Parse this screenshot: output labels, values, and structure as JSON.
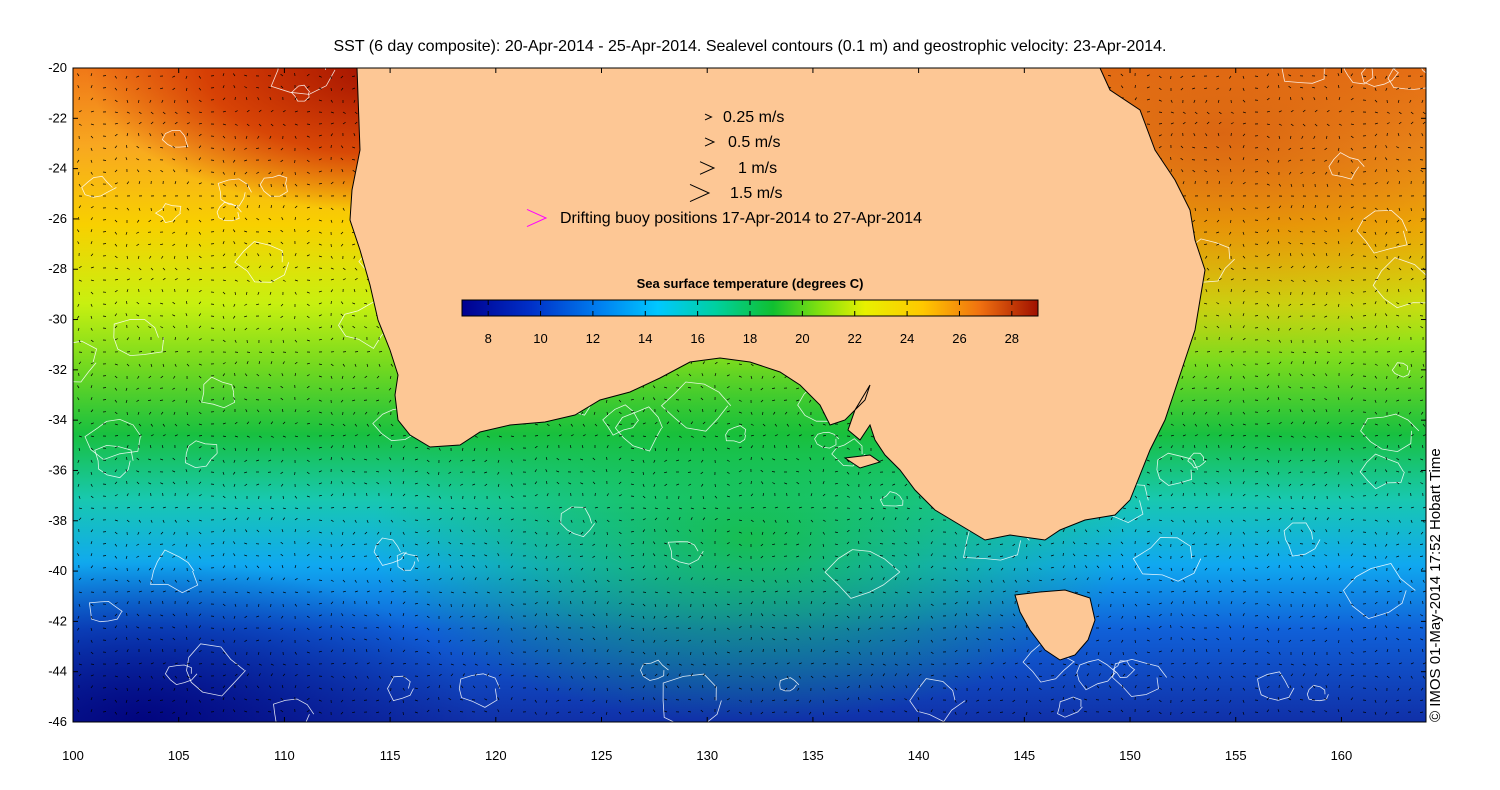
{
  "title": "SST (6 day composite): 20-Apr-2014 - 25-Apr-2014. Sealevel contours (0.1 m) and geostrophic velocity: 23-Apr-2014.",
  "credit": "© IMOS 01-May-2014 17:52 Hobart Time",
  "axes": {
    "lon_range": [
      100,
      164
    ],
    "lat_range": [
      -46,
      -20
    ],
    "x_ticks": [
      "100",
      "105",
      "110",
      "115",
      "120",
      "125",
      "130",
      "135",
      "140",
      "145",
      "150",
      "155",
      "160"
    ],
    "y_ticks": [
      "-20",
      "-22",
      "-24",
      "-26",
      "-28",
      "-30",
      "-32",
      "-34",
      "-36",
      "-38",
      "-40",
      "-42",
      "-44",
      "-46"
    ]
  },
  "legend": {
    "items": [
      {
        "label": "0.25 m/s",
        "speed": 0.25,
        "color": "#000000"
      },
      {
        "label": "0.5 m/s",
        "speed": 0.5,
        "color": "#000000"
      },
      {
        "label": "1 m/s",
        "speed": 1.0,
        "color": "#000000"
      },
      {
        "label": "1.5 m/s",
        "speed": 1.5,
        "color": "#000000"
      },
      {
        "label": "Drifting buoy positions 17-Apr-2014 to 27-Apr-2014",
        "speed": 1.5,
        "color": "#ff00ff"
      }
    ]
  },
  "colorbar": {
    "title": "Sea surface temperature (degrees C)",
    "range": [
      7,
      29
    ],
    "ticks": [
      "8",
      "10",
      "12",
      "14",
      "16",
      "18",
      "20",
      "22",
      "24",
      "26",
      "28"
    ]
  },
  "colors": {
    "land": "#fdc795",
    "coast": "#000000",
    "contour": "#ffffff",
    "arrow": "#000000"
  }
}
